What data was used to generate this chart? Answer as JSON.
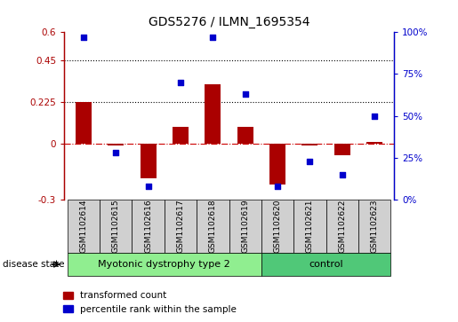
{
  "title": "GDS5276 / ILMN_1695354",
  "categories": [
    "GSM1102614",
    "GSM1102615",
    "GSM1102616",
    "GSM1102617",
    "GSM1102618",
    "GSM1102619",
    "GSM1102620",
    "GSM1102621",
    "GSM1102622",
    "GSM1102623"
  ],
  "red_values": [
    0.225,
    -0.01,
    -0.185,
    0.09,
    0.32,
    0.09,
    -0.22,
    -0.01,
    -0.06,
    0.01
  ],
  "blue_values": [
    97,
    28,
    8,
    70,
    97,
    63,
    8,
    23,
    15,
    50
  ],
  "ylim_left": [
    -0.3,
    0.6
  ],
  "ylim_right": [
    0,
    100
  ],
  "yticks_left": [
    -0.3,
    0.0,
    0.225,
    0.45,
    0.6
  ],
  "yticks_right": [
    0,
    25,
    50,
    75,
    100
  ],
  "ytick_labels_left": [
    "-0.3",
    "0",
    "0.225",
    "0.45",
    "0.6"
  ],
  "ytick_labels_right": [
    "0%",
    "25%",
    "50%",
    "75%",
    "100%"
  ],
  "hlines": [
    0.225,
    0.45
  ],
  "disease_groups": [
    {
      "label": "Myotonic dystrophy type 2",
      "start": 0,
      "end": 6,
      "color": "#90EE90"
    },
    {
      "label": "control",
      "start": 6,
      "end": 10,
      "color": "#50C878"
    }
  ],
  "disease_state_label": "disease state",
  "red_color": "#AA0000",
  "blue_color": "#0000CC",
  "zero_line_color": "#CC0000",
  "legend_red_label": "transformed count",
  "legend_blue_label": "percentile rank within the sample",
  "bar_width": 0.5,
  "label_box_color": "#d0d0d0"
}
